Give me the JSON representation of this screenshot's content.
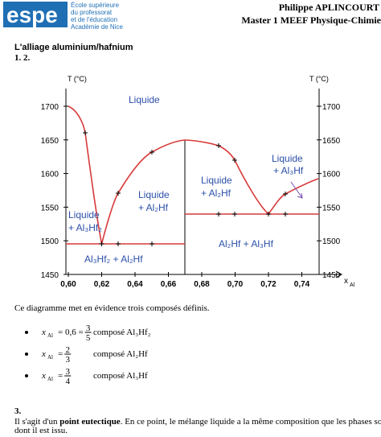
{
  "header": {
    "logo": "espe",
    "institution": [
      "École supérieure",
      "du professorat",
      "et de l'éducation",
      "Académie de Nice"
    ],
    "author": "Philippe APLINCOURT",
    "course": "Master 1 MEEF Physique-Chimie"
  },
  "section_title": "L'alliage aluminium/hafnium",
  "subsection": "1. 2.",
  "diagram": {
    "y_axis_label": "T (°C)",
    "x_axis_label": "x",
    "x_axis_sub": "Al",
    "yticks": [
      "1700",
      "1650",
      "1600",
      "1550",
      "1500",
      "1450"
    ],
    "xticks": [
      "0,60",
      "0,62",
      "0,64",
      "0,66",
      "0,68",
      "0,70",
      "0,72",
      "0,74"
    ],
    "regions": [
      "Liquide",
      "Liquide",
      "+ Al₃Hf",
      "Liquide",
      "+ Al₂Hf",
      "Liquide",
      "+ Al₂Hf",
      "Liquide",
      "+ Al₃Hf₂",
      "Al₃Hf₂ + Al₂Hf",
      "Al₂Hf + Al₃Hf"
    ]
  },
  "intro": "Ce diagramme met en évidence trois composés définis.",
  "bullets": [
    {
      "x": "x",
      "sub": "Al",
      "eq": "= 0,6 =",
      "num": "3",
      "den": "5",
      "compound": "composé Al₃Hf₂"
    },
    {
      "x": "x",
      "sub": "Al",
      "eq": "=",
      "num": "2",
      "den": "3",
      "compound": "composé Al₂Hf"
    },
    {
      "x": "x",
      "sub": "Al",
      "eq": "=",
      "num": "3",
      "den": "4",
      "compound": "composé Al₃Hf"
    }
  ],
  "section3": {
    "number": "3.",
    "before": "Il s'agit d'un ",
    "bold": "point eutectique",
    "after": ". En ce point, le mélange liquide a la même composition que les phases solides",
    "line2": "dont il est issu."
  }
}
